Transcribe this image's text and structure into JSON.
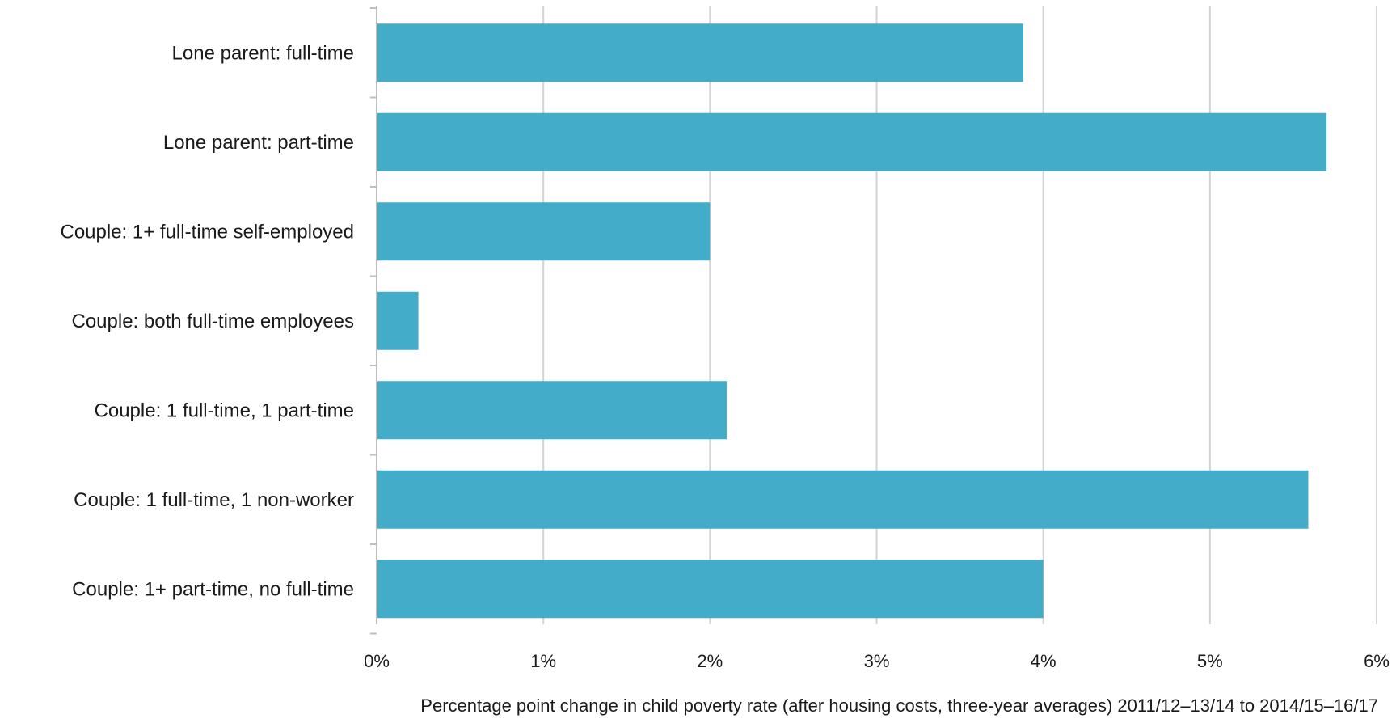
{
  "chart_data": {
    "type": "bar",
    "orientation": "horizontal",
    "categories": [
      "Lone parent: full-time",
      "Lone parent: part-time",
      "Couple: 1+ full-time self-employed",
      "Couple: both full-time employees",
      "Couple: 1 full-time, 1 part-time",
      "Couple: 1 full-time, 1 non-worker",
      "Couple: 1+ part-time, no full-time"
    ],
    "values": [
      3.88,
      5.7,
      2.0,
      0.25,
      2.1,
      5.59,
      4.0
    ],
    "xlabel": "Percentage point change in child poverty rate (after housing costs, three-year  averages) 2011/12–13/14 to 2014/15–16/17",
    "xlim": [
      0,
      6
    ],
    "xticks": [
      0,
      1,
      2,
      3,
      4,
      5,
      6
    ],
    "xtick_labels": [
      "0%",
      "1%",
      "2%",
      "3%",
      "4%",
      "5%",
      "6%"
    ],
    "grid": "vertical",
    "legend": "none",
    "bar_color": "#43acc8"
  }
}
